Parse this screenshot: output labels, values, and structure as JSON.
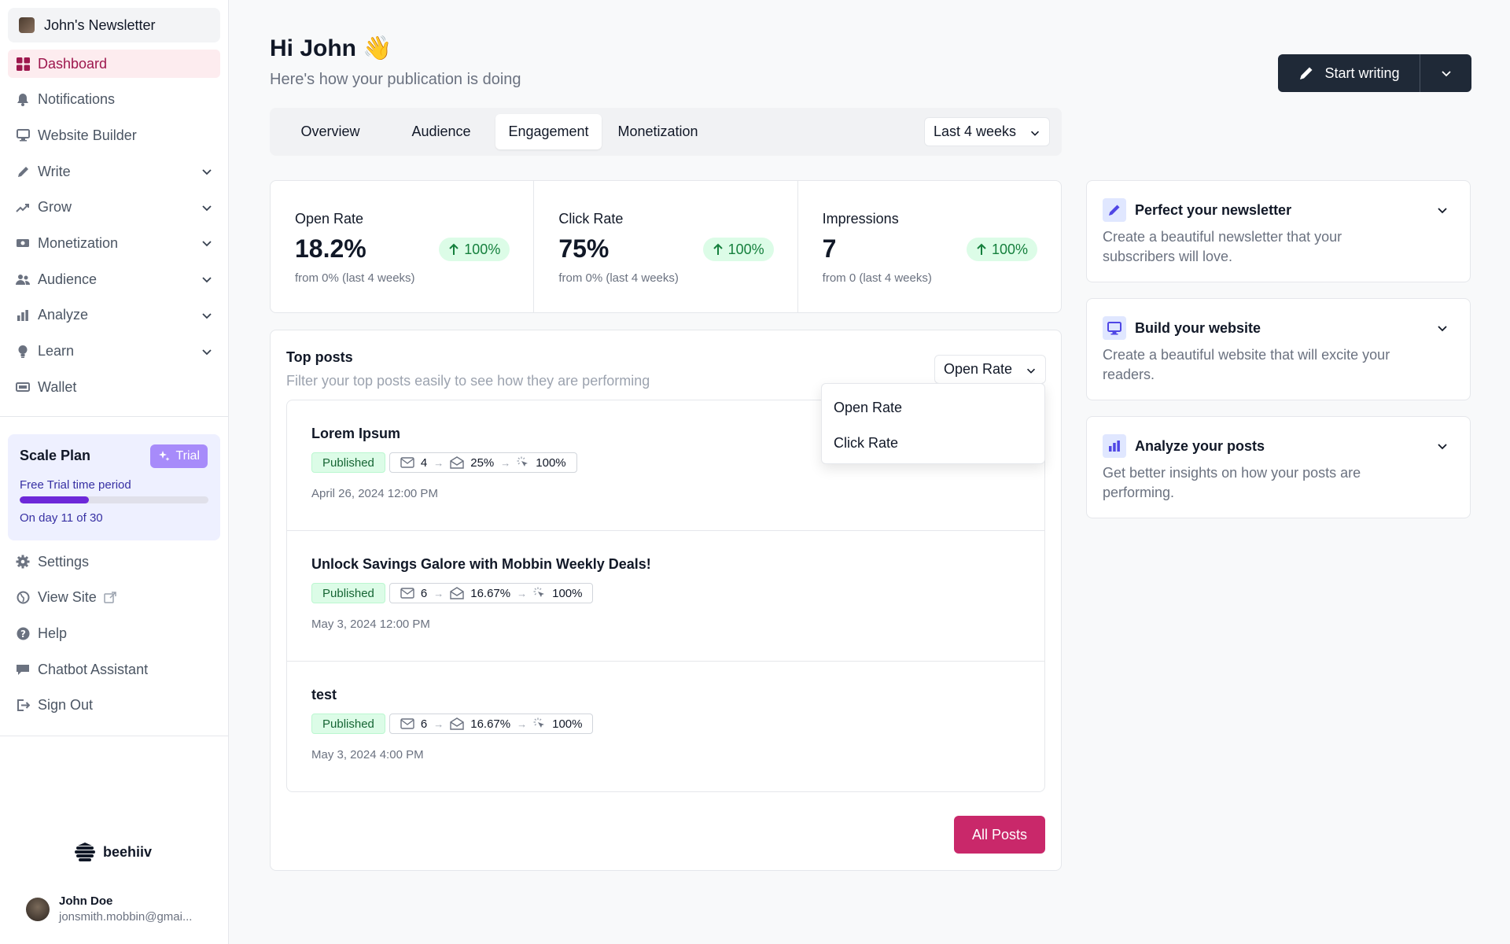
{
  "sidebar": {
    "publication": "John's Newsletter",
    "nav": [
      {
        "label": "Dashboard",
        "icon": "dashboard-icon",
        "active": true
      },
      {
        "label": "Notifications",
        "icon": "bell-icon"
      },
      {
        "label": "Website Builder",
        "icon": "monitor-icon"
      },
      {
        "label": "Write",
        "icon": "pencil-icon",
        "expandable": true
      },
      {
        "label": "Grow",
        "icon": "trend-icon",
        "expandable": true
      },
      {
        "label": "Monetization",
        "icon": "money-icon",
        "expandable": true
      },
      {
        "label": "Audience",
        "icon": "users-icon",
        "expandable": true
      },
      {
        "label": "Analyze",
        "icon": "bar-chart-icon",
        "expandable": true
      },
      {
        "label": "Learn",
        "icon": "bulb-icon",
        "expandable": true
      },
      {
        "label": "Wallet",
        "icon": "wallet-icon"
      }
    ],
    "plan": {
      "title": "Scale Plan",
      "badge": "Trial",
      "subtitle": "Free Trial time period",
      "day_text": "On day 11 of 30",
      "progress_fraction": 0.367
    },
    "nav_bottom": [
      {
        "label": "Settings",
        "icon": "gear-icon"
      },
      {
        "label": "View Site",
        "icon": "globe-icon"
      },
      {
        "label": "Help",
        "icon": "help-icon"
      },
      {
        "label": "Chatbot Assistant",
        "icon": "chat-icon"
      },
      {
        "label": "Sign Out",
        "icon": "sign-out-icon"
      }
    ],
    "brand": "beehiiv",
    "user": {
      "name": "John Doe",
      "email": "jonsmith.mobbin@gmai..."
    }
  },
  "header": {
    "greeting": "Hi John",
    "wave": "👋",
    "subtitle": "Here's how your publication is doing",
    "start_writing": "Start writing"
  },
  "tabs": {
    "items": [
      "Overview",
      "Audience",
      "Engagement",
      "Monetization"
    ],
    "active": "Engagement",
    "range": "Last 4 weeks"
  },
  "stats": [
    {
      "label": "Open Rate",
      "value": "18.2%",
      "change": "100%",
      "sub": "from 0% (last 4 weeks)"
    },
    {
      "label": "Click Rate",
      "value": "75%",
      "change": "100%",
      "sub": "from 0% (last 4 weeks)"
    },
    {
      "label": "Impressions",
      "value": "7",
      "change": "100%",
      "sub": "from 0 (last 4 weeks)"
    }
  ],
  "top_posts": {
    "title": "Top posts",
    "subtitle": "Filter your top posts easily to see how they are performing",
    "sort_value": "Open Rate",
    "sort_options": [
      "Open Rate",
      "Click Rate"
    ],
    "posts": [
      {
        "title": "Lorem Ipsum",
        "status": "Published",
        "sent": "4",
        "opened": "25%",
        "clicked": "100%",
        "date": "April 26, 2024 12:00 PM"
      },
      {
        "title": "Unlock Savings Galore with Mobbin Weekly Deals!",
        "status": "Published",
        "sent": "6",
        "opened": "16.67%",
        "clicked": "100%",
        "date": "May 3, 2024 12:00 PM"
      },
      {
        "title": "test",
        "status": "Published",
        "sent": "6",
        "opened": "16.67%",
        "clicked": "100%",
        "date": "May 3, 2024 4:00 PM"
      }
    ],
    "all_posts": "All Posts"
  },
  "cards": [
    {
      "title": "Perfect your newsletter",
      "desc": "Create a beautiful newsletter that your subscribers will love.",
      "icon": "pencil-icon"
    },
    {
      "title": "Build your website",
      "desc": "Create a beautiful website that will excite your readers.",
      "icon": "monitor-icon"
    },
    {
      "title": "Analyze your posts",
      "desc": "Get better insights on how your posts are performing.",
      "icon": "bar-chart-icon"
    }
  ],
  "colors": {
    "accent": "#c9286a",
    "active_nav_bg": "#fdecef",
    "success": "#15803d",
    "plan_bg": "#eef0ff",
    "plan_progress": "#6d28d9"
  }
}
